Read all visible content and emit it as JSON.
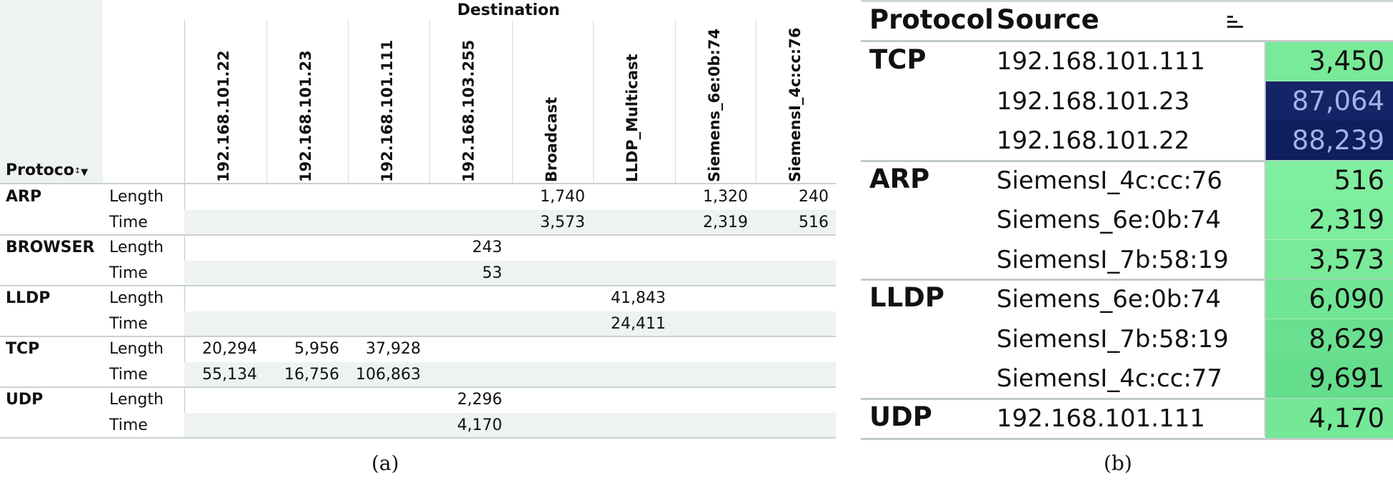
{
  "chart_data": [
    {
      "type": "table",
      "panel_label": "(a)",
      "column_group_title": "Destination",
      "row_header": "Protocol",
      "columns": [
        "192.168.101.22",
        "192.168.101.23",
        "192.168.101.111",
        "192.168.103.255",
        "Broadcast",
        "LLDP_Multicast",
        "Siemens_6e:0b:74",
        "SiemensI_4c:cc:76"
      ],
      "rows": [
        {
          "protocol": "ARP",
          "metrics": [
            {
              "name": "Length",
              "cells": [
                "",
                "",
                "",
                "",
                "1,740",
                "",
                "1,320",
                "240"
              ]
            },
            {
              "name": "Time",
              "cells": [
                "",
                "",
                "",
                "",
                "3,573",
                "",
                "2,319",
                "516"
              ]
            }
          ]
        },
        {
          "protocol": "BROWSER",
          "metrics": [
            {
              "name": "Length",
              "cells": [
                "",
                "",
                "",
                "243",
                "",
                "",
                "",
                ""
              ]
            },
            {
              "name": "Time",
              "cells": [
                "",
                "",
                "",
                "53",
                "",
                "",
                "",
                ""
              ]
            }
          ]
        },
        {
          "protocol": "LLDP",
          "metrics": [
            {
              "name": "Length",
              "cells": [
                "",
                "",
                "",
                "",
                "",
                "41,843",
                "",
                ""
              ]
            },
            {
              "name": "Time",
              "cells": [
                "",
                "",
                "",
                "",
                "",
                "24,411",
                "",
                ""
              ]
            }
          ]
        },
        {
          "protocol": "TCP",
          "metrics": [
            {
              "name": "Length",
              "cells": [
                "20,294",
                "5,956",
                "37,928",
                "",
                "",
                "",
                "",
                ""
              ]
            },
            {
              "name": "Time",
              "cells": [
                "55,134",
                "16,756",
                "106,863",
                "",
                "",
                "",
                "",
                ""
              ]
            }
          ]
        },
        {
          "protocol": "UDP",
          "metrics": [
            {
              "name": "Length",
              "cells": [
                "",
                "",
                "",
                "2,296",
                "",
                "",
                "",
                ""
              ]
            },
            {
              "name": "Time",
              "cells": [
                "",
                "",
                "",
                "4,170",
                "",
                "",
                "",
                ""
              ]
            }
          ]
        }
      ]
    },
    {
      "type": "heatmap",
      "panel_label": "(b)",
      "headers": {
        "protocol": "Protocol",
        "source": "Source"
      },
      "groups": [
        {
          "protocol": "TCP",
          "rows": [
            {
              "source": "192.168.101.111",
              "value": "3,450",
              "color": "#78ea98",
              "text_color": "#111111"
            },
            {
              "source": "192.168.101.23",
              "value": "87,064",
              "color": "#152466",
              "text_color": "#9fb6e8"
            },
            {
              "source": "192.168.101.22",
              "value": "88,239",
              "color": "#0f1f5e",
              "text_color": "#9fb6e8"
            }
          ]
        },
        {
          "protocol": "ARP",
          "rows": [
            {
              "source": "SiemensI_4c:cc:76",
              "value": "516",
              "color": "#80ee9f",
              "text_color": "#111111"
            },
            {
              "source": "Siemens_6e:0b:74",
              "value": "2,319",
              "color": "#7ced9c",
              "text_color": "#111111"
            },
            {
              "source": "SiemensI_7b:58:19",
              "value": "3,573",
              "color": "#78ea98",
              "text_color": "#111111"
            }
          ]
        },
        {
          "protocol": "LLDP",
          "rows": [
            {
              "source": "Siemens_6e:0b:74",
              "value": "6,090",
              "color": "#70e594",
              "text_color": "#111111"
            },
            {
              "source": "SiemensI_7b:58:19",
              "value": "8,629",
              "color": "#69e08f",
              "text_color": "#111111"
            },
            {
              "source": "SiemensI_4c:cc:77",
              "value": "9,691",
              "color": "#64dd8c",
              "text_color": "#111111"
            }
          ]
        },
        {
          "protocol": "UDP",
          "rows": [
            {
              "source": "192.168.101.111",
              "value": "4,170",
              "color": "#74e896",
              "text_color": "#111111"
            }
          ]
        }
      ]
    }
  ]
}
